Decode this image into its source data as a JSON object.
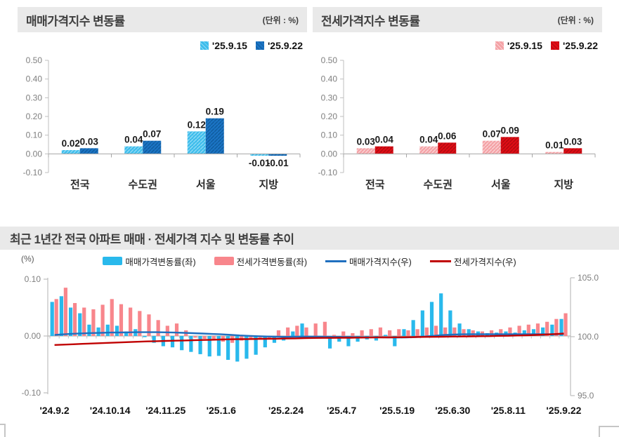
{
  "chart_data": [
    {
      "id": "sale",
      "type": "bar",
      "title": "매매가격지수 변동률",
      "unit_label": "(단위 : %)",
      "categories": [
        "전국",
        "수도권",
        "서울",
        "지방"
      ],
      "series": [
        {
          "name": "'25.9.15",
          "color": "#3DBDEB",
          "hatch": "#8ED9F6",
          "values": [
            0.02,
            0.04,
            0.12,
            -0.01
          ]
        },
        {
          "name": "'25.9.22",
          "color": "#1B74C4",
          "hatch": "#0F5B9E",
          "values": [
            0.03,
            0.07,
            0.19,
            -0.01
          ]
        }
      ],
      "ylim": [
        -0.1,
        0.5
      ],
      "yticks": [
        0.5,
        0.4,
        0.3,
        0.2,
        0.1,
        0.0,
        -0.1
      ],
      "grid": false,
      "legend_position": "top-right"
    },
    {
      "id": "jeonse",
      "type": "bar",
      "title": "전세가격지수 변동률",
      "unit_label": "(단위 : %)",
      "categories": [
        "전국",
        "수도권",
        "서울",
        "지방"
      ],
      "series": [
        {
          "name": "'25.9.15",
          "color": "#F4A1A5",
          "hatch": "#FAD3D5",
          "values": [
            0.03,
            0.04,
            0.07,
            0.01
          ]
        },
        {
          "name": "'25.9.22",
          "color": "#E00D15",
          "hatch": "#AF0A10",
          "values": [
            0.04,
            0.06,
            0.09,
            0.03
          ]
        }
      ],
      "ylim": [
        -0.1,
        0.5
      ],
      "yticks": [
        0.5,
        0.4,
        0.3,
        0.2,
        0.1,
        0.0,
        -0.1
      ],
      "grid": false,
      "legend_position": "top-right"
    },
    {
      "id": "trend",
      "type": "combo",
      "title": "최근 1년간 전국 아파트 매매 · 전세가격 지수 및 변동률 추이",
      "left_axis_label": "(%)",
      "left_ylim": [
        -0.1,
        0.1
      ],
      "left_yticks": [
        0.1,
        0.0,
        -0.1
      ],
      "right_ylim": [
        95.0,
        105.0
      ],
      "right_yticks": [
        105.0,
        100.0,
        95.0
      ],
      "x_tick_labels": [
        "'24.9.2",
        "'24.10.14",
        "'24.11.25",
        "'25.1.6",
        "'25.2.24",
        "'25.4.7",
        "'25.5.19",
        "'25.6.30",
        "'25.8.11",
        "'25.9.22"
      ],
      "x_tick_positions": [
        0,
        6,
        12,
        18,
        25,
        31,
        37,
        43,
        49,
        55
      ],
      "weeks": 56,
      "bar_series": [
        {
          "name": "매매가격변동률(좌)",
          "color": "#29B9EC",
          "axis": "left",
          "values": [
            0.06,
            0.07,
            0.05,
            0.04,
            0.02,
            0.015,
            0.02,
            0.018,
            0.008,
            0.012,
            -0.002,
            -0.012,
            -0.018,
            -0.02,
            -0.025,
            -0.028,
            -0.032,
            -0.036,
            -0.035,
            -0.042,
            -0.045,
            -0.04,
            -0.033,
            -0.02,
            -0.012,
            -0.008,
            0.008,
            0.022,
            -0.005,
            -0.003,
            -0.022,
            -0.01,
            -0.018,
            -0.01,
            -0.006,
            -0.008,
            0.002,
            -0.018,
            0.012,
            0.028,
            0.045,
            0.06,
            0.075,
            0.045,
            0.022,
            0.012,
            0.008,
            0.005,
            0.006,
            0.008,
            0.006,
            0.01,
            0.012,
            0.015,
            0.02,
            0.03
          ]
        },
        {
          "name": "전세가격변동률(좌)",
          "color": "#F8868C",
          "axis": "left",
          "values": [
            0.065,
            0.085,
            0.058,
            0.05,
            0.047,
            0.055,
            0.065,
            0.056,
            0.05,
            0.044,
            0.038,
            0.028,
            0.018,
            0.022,
            0.01,
            -0.003,
            -0.005,
            -0.008,
            -0.01,
            -0.012,
            -0.008,
            -0.006,
            -0.005,
            -0.004,
            0.01,
            0.015,
            0.018,
            0.015,
            0.022,
            0.025,
            0.002,
            0.008,
            0.005,
            0.01,
            0.012,
            0.015,
            0.01,
            0.012,
            0.01,
            0.012,
            0.015,
            0.018,
            0.015,
            0.015,
            0.012,
            0.01,
            0.008,
            0.01,
            0.012,
            0.015,
            0.018,
            0.02,
            0.022,
            0.025,
            0.03,
            0.04
          ]
        }
      ],
      "line_series": [
        {
          "name": "매매가격지수(우)",
          "color": "#1F6FBF",
          "axis": "right",
          "values": [
            100.15,
            100.2,
            100.25,
            100.28,
            100.31,
            100.33,
            100.35,
            100.36,
            100.37,
            100.38,
            100.38,
            100.38,
            100.37,
            100.35,
            100.33,
            100.3,
            100.27,
            100.23,
            100.2,
            100.16,
            100.11,
            100.07,
            100.04,
            100.02,
            100.0,
            99.99,
            100.0,
            100.01,
            100.01,
            100.0,
            99.99,
            99.98,
            99.97,
            99.96,
            99.95,
            99.95,
            99.94,
            99.93,
            99.94,
            99.97,
            100.02,
            100.08,
            100.14,
            100.18,
            100.2,
            100.21,
            100.21,
            100.21,
            100.21,
            100.21,
            100.21,
            100.21,
            100.21,
            100.21,
            100.21,
            100.22
          ]
        },
        {
          "name": "전세가격지수(우)",
          "color": "#C00000",
          "axis": "right",
          "values": [
            99.3,
            99.33,
            99.36,
            99.39,
            99.42,
            99.45,
            99.48,
            99.51,
            99.54,
            99.57,
            99.6,
            99.62,
            99.64,
            99.66,
            99.68,
            99.7,
            99.72,
            99.74,
            99.76,
            99.78,
            99.79,
            99.8,
            99.81,
            99.82,
            99.83,
            99.85,
            99.86,
            99.88,
            99.89,
            99.9,
            99.9,
            99.91,
            99.91,
            99.92,
            99.93,
            99.94,
            99.94,
            99.95,
            99.96,
            99.97,
            99.98,
            99.99,
            100.0,
            100.01,
            100.02,
            100.03,
            100.04,
            100.05,
            100.07,
            100.08,
            100.1,
            100.12,
            100.15,
            100.18,
            100.22,
            100.27
          ]
        }
      ],
      "legend_position": "top-center",
      "grid": false
    }
  ]
}
